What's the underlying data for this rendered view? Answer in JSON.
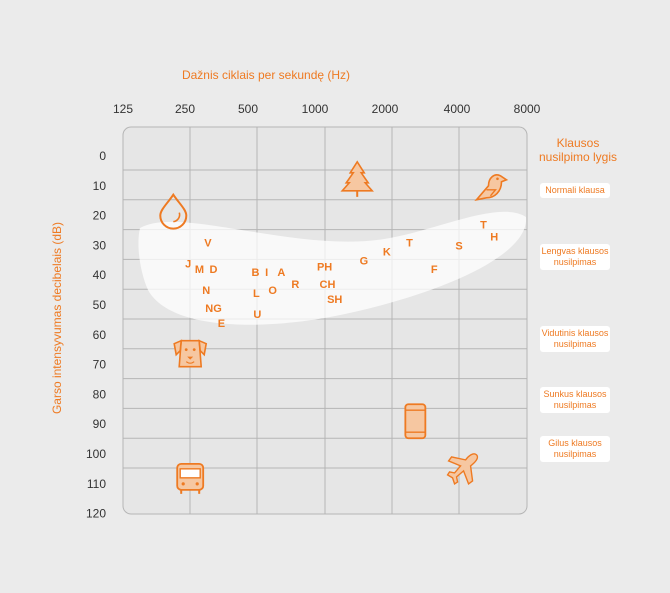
{
  "chart_data": {
    "type": "scatter",
    "title": "",
    "xlabel": "Dažnis ciklais per sekundę (Hz)",
    "ylabel": "Garso intensyvumas decibelais (dB)",
    "x_ticks": [
      "125",
      "250",
      "500",
      "1000",
      "2000",
      "4000",
      "8000"
    ],
    "x_scale": "log2",
    "y_ticks": [
      "0",
      "10",
      "20",
      "30",
      "40",
      "50",
      "60",
      "70",
      "80",
      "90",
      "100",
      "110",
      "120"
    ],
    "ylim": [
      0,
      120
    ],
    "grid": true,
    "speech_banana": "speech-area",
    "phonemes": [
      {
        "label": "V",
        "hz": 300,
        "db": 29
      },
      {
        "label": "J",
        "hz": 245,
        "db": 36
      },
      {
        "label": "M",
        "hz": 275,
        "db": 38
      },
      {
        "label": "D",
        "hz": 318,
        "db": 38
      },
      {
        "label": "N",
        "hz": 295,
        "db": 45
      },
      {
        "label": "NG",
        "hz": 318,
        "db": 51
      },
      {
        "label": "E",
        "hz": 345,
        "db": 56
      },
      {
        "label": "B",
        "hz": 490,
        "db": 39
      },
      {
        "label": "I",
        "hz": 550,
        "db": 39
      },
      {
        "label": "A",
        "hz": 640,
        "db": 39
      },
      {
        "label": "L",
        "hz": 495,
        "db": 46
      },
      {
        "label": "O",
        "hz": 585,
        "db": 45
      },
      {
        "label": "R",
        "hz": 740,
        "db": 43
      },
      {
        "label": "U",
        "hz": 500,
        "db": 53
      },
      {
        "label": "PH",
        "hz": 1000,
        "db": 37
      },
      {
        "label": "CH",
        "hz": 1030,
        "db": 43
      },
      {
        "label": "SH",
        "hz": 1110,
        "db": 48
      },
      {
        "label": "G",
        "hz": 1500,
        "db": 35
      },
      {
        "label": "K",
        "hz": 1900,
        "db": 32
      },
      {
        "label": "T",
        "hz": 2400,
        "db": 29
      },
      {
        "label": "F",
        "hz": 3100,
        "db": 38
      },
      {
        "label": "S",
        "hz": 4000,
        "db": 30
      },
      {
        "label": "T",
        "hz": 5150,
        "db": 23
      },
      {
        "label": "H",
        "hz": 5750,
        "db": 27
      }
    ],
    "sound_icons": [
      {
        "name": "dripping-water-icon",
        "hz": 210,
        "db": 18
      },
      {
        "name": "tree-leaves-icon",
        "hz": 1400,
        "db": 7
      },
      {
        "name": "bird-chirp-icon",
        "hz": 5650,
        "db": 10
      },
      {
        "name": "dog-bark-icon",
        "hz": 250,
        "db": 66
      },
      {
        "name": "phone-ring-icon",
        "hz": 2550,
        "db": 89
      },
      {
        "name": "bus-icon",
        "hz": 250,
        "db": 108
      },
      {
        "name": "airplane-icon",
        "hz": 4150,
        "db": 105
      }
    ]
  },
  "levels": {
    "title": "Klausos nusilpimo lygis",
    "items": [
      {
        "label": "Normali klausa"
      },
      {
        "label": "Lengvas klausos nusilpimas"
      },
      {
        "label": "Vidutinis klausos nusilpimas"
      },
      {
        "label": "Sunkus klausos nusilpimas"
      },
      {
        "label": "Gilus klausos nusilpimas"
      }
    ]
  },
  "colors": {
    "accent": "#ee7a22",
    "plot_bg": "#e6e6e6",
    "grid": "#b5b5b5",
    "banana": "#ffffff"
  }
}
